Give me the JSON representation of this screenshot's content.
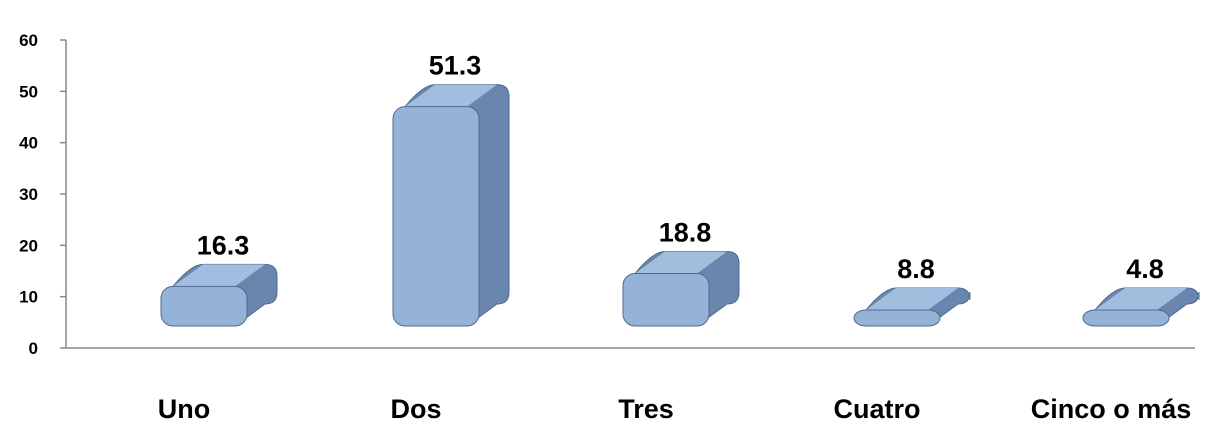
{
  "chart_data": {
    "type": "bar",
    "categories": [
      "Uno",
      "Dos",
      "Tres",
      "Cuatro",
      "Cinco o más"
    ],
    "values": [
      16.3,
      51.3,
      18.8,
      8.8,
      4.8
    ],
    "data_labels": [
      "16.3",
      "51.3",
      "18.8",
      "8.8",
      "4.8"
    ],
    "yticks": [
      "0",
      "10",
      "20",
      "30",
      "40",
      "50",
      "60"
    ],
    "ylim": [
      0,
      60
    ],
    "grid": false,
    "legend": "none",
    "style": "3d-rounded",
    "colors": {
      "bar_front": "#95b3d7",
      "bar_top": "#a9c4e4",
      "bar_side": "#6a86ae",
      "bar_stroke": "#4f6a91",
      "axis": "#888888"
    }
  }
}
